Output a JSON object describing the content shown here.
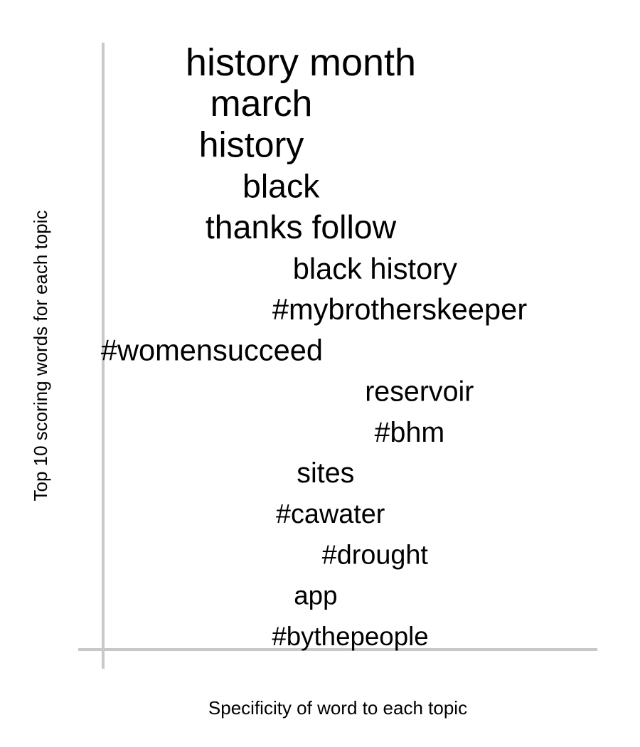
{
  "chart_data": {
    "type": "scatter",
    "title": "",
    "xlabel": "Specificity of word to each topic",
    "ylabel": "Top 10 scoring words for each topic",
    "grid": false,
    "legend": "none",
    "axis_color": "#c8c8c8",
    "words": [
      {
        "label": "history month",
        "x": 0.4,
        "rank": 1,
        "size": 1.0
      },
      {
        "label": "march",
        "x": 0.32,
        "rank": 2,
        "size": 0.96
      },
      {
        "label": "history",
        "x": 0.3,
        "rank": 3,
        "size": 0.93
      },
      {
        "label": "black",
        "x": 0.36,
        "rank": 4,
        "size": 0.86
      },
      {
        "label": "thanks follow",
        "x": 0.4,
        "rank": 5,
        "size": 0.86
      },
      {
        "label": "black history",
        "x": 0.55,
        "rank": 6,
        "size": 0.77
      },
      {
        "label": "#mybrotherskeeper",
        "x": 0.6,
        "rank": 7,
        "size": 0.77
      },
      {
        "label": "#womensucceed",
        "x": 0.22,
        "rank": 8,
        "size": 0.77
      },
      {
        "label": "reservoir",
        "x": 0.64,
        "rank": 9,
        "size": 0.73
      },
      {
        "label": "#bhm",
        "x": 0.62,
        "rank": 10,
        "size": 0.73
      },
      {
        "label": "sites",
        "x": 0.45,
        "rank": 11,
        "size": 0.73
      },
      {
        "label": "#cawater",
        "x": 0.46,
        "rank": 12,
        "size": 0.7
      },
      {
        "label": "#drought",
        "x": 0.55,
        "rank": 13,
        "size": 0.7
      },
      {
        "label": "app",
        "x": 0.43,
        "rank": 14,
        "size": 0.68
      },
      {
        "label": "#bythepeople",
        "x": 0.5,
        "rank": 15,
        "size": 0.68
      }
    ]
  }
}
